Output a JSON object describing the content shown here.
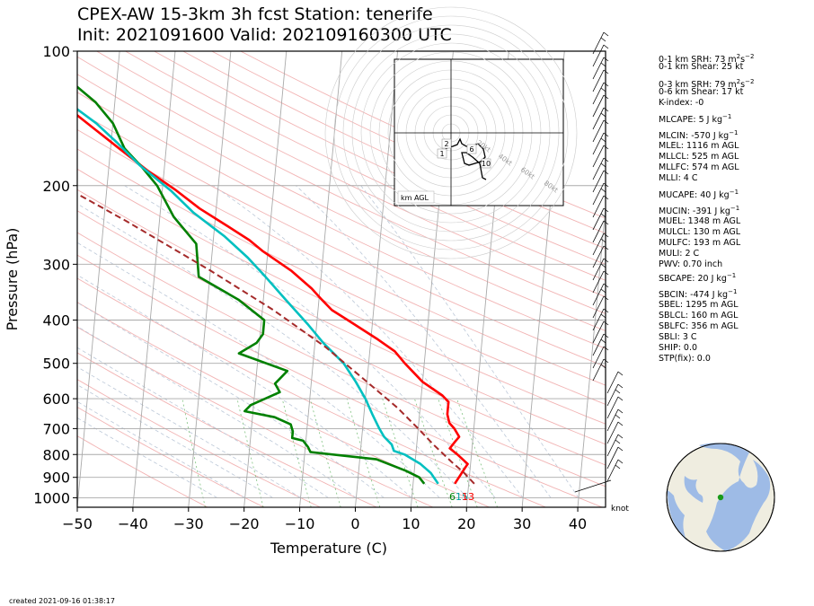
{
  "title": {
    "line1": "CPEX-AW 15-3km  3h fcst  Station: tenerife",
    "line2": "Init: 2021091600  Valid: 202109160300 UTC"
  },
  "chart_data": {
    "type": "line",
    "subtype": "skew-T log-p sounding",
    "xlabel": "Temperature (C)",
    "ylabel": "Pressure (hPa)",
    "x_ticks": [
      -50,
      -40,
      -30,
      -20,
      -10,
      0,
      10,
      20,
      30,
      40
    ],
    "x_tick_labels": [
      "−50",
      "−40",
      "−30",
      "−20",
      "−10",
      "0",
      "10",
      "20",
      "30",
      "40"
    ],
    "y_ticks": [
      100,
      200,
      300,
      400,
      500,
      600,
      700,
      800,
      900,
      1000
    ],
    "xlim": [
      -50,
      45
    ],
    "ylim": [
      1050,
      100
    ],
    "y_scale": "log",
    "wind_unit_label": "knot",
    "surface_labels": {
      "dewpoint": "6",
      "wetbulb": "15",
      "temperature": "13"
    },
    "series": [
      {
        "name": "temperature",
        "color": "#ff0000",
        "points": [
          [
            17.5,
            930
          ],
          [
            19.0,
            860
          ],
          [
            19.5,
            840
          ],
          [
            18.5,
            820
          ],
          [
            17.5,
            800
          ],
          [
            16.0,
            775
          ],
          [
            16.8,
            750
          ],
          [
            17.5,
            730
          ],
          [
            16.5,
            700
          ],
          [
            15.5,
            680
          ],
          [
            15.0,
            650
          ],
          [
            15.0,
            610
          ],
          [
            13.8,
            590
          ],
          [
            10.0,
            550
          ],
          [
            6.5,
            500
          ],
          [
            4.5,
            470
          ],
          [
            1.0,
            440
          ],
          [
            -4.5,
            400
          ],
          [
            -7.5,
            380
          ],
          [
            -9.5,
            360
          ],
          [
            -11.5,
            340
          ],
          [
            -15.5,
            310
          ],
          [
            -21.0,
            280
          ],
          [
            -23.5,
            265
          ],
          [
            -28.0,
            245
          ],
          [
            -33.0,
            225
          ],
          [
            -37.5,
            205
          ],
          [
            -43.0,
            185
          ],
          [
            -48.5,
            165
          ],
          [
            -53.0,
            150
          ],
          [
            -58.0,
            135
          ],
          [
            -61.5,
            122
          ],
          [
            -65.5,
            112
          ],
          [
            -70.0,
            100
          ]
        ]
      },
      {
        "name": "dewpoint",
        "color": "#008000",
        "points": [
          [
            12.0,
            930
          ],
          [
            11.0,
            900
          ],
          [
            8.5,
            870
          ],
          [
            3.0,
            820
          ],
          [
            -9.0,
            790
          ],
          [
            -9.5,
            770
          ],
          [
            -10.5,
            745
          ],
          [
            -12.5,
            735
          ],
          [
            -12.5,
            710
          ],
          [
            -13.0,
            685
          ],
          [
            -16.0,
            660
          ],
          [
            -21.5,
            640
          ],
          [
            -20.5,
            620
          ],
          [
            -15.5,
            580
          ],
          [
            -16.5,
            555
          ],
          [
            -14.5,
            520
          ],
          [
            -23.5,
            475
          ],
          [
            -20.5,
            450
          ],
          [
            -19.5,
            430
          ],
          [
            -19.5,
            400
          ],
          [
            -24.5,
            360
          ],
          [
            -32.0,
            320
          ],
          [
            -33.0,
            270
          ],
          [
            -37.5,
            235
          ],
          [
            -41.0,
            200
          ],
          [
            -44.0,
            182
          ],
          [
            -47.5,
            165
          ],
          [
            -50.0,
            145
          ],
          [
            -53.5,
            130
          ],
          [
            -59.0,
            115
          ],
          [
            -66.0,
            100
          ]
        ]
      },
      {
        "name": "wetbulb",
        "color": "#00c0c0",
        "points": [
          [
            14.5,
            930
          ],
          [
            13.0,
            880
          ],
          [
            11.0,
            840
          ],
          [
            8.0,
            800
          ],
          [
            6.0,
            785
          ],
          [
            5.5,
            760
          ],
          [
            4.0,
            730
          ],
          [
            3.0,
            700
          ],
          [
            1.5,
            650
          ],
          [
            0.0,
            600
          ],
          [
            -2.0,
            550
          ],
          [
            -4.5,
            500
          ],
          [
            -8.5,
            450
          ],
          [
            -11.5,
            410
          ],
          [
            -16.0,
            360
          ],
          [
            -20.0,
            320
          ],
          [
            -23.5,
            290
          ],
          [
            -28.0,
            260
          ],
          [
            -34.0,
            230
          ],
          [
            -38.5,
            205
          ],
          [
            -44.5,
            180
          ],
          [
            -49.0,
            160
          ],
          [
            -53.0,
            145
          ],
          [
            -58.5,
            130
          ],
          [
            -61.5,
            122
          ],
          [
            -65.5,
            112
          ],
          [
            -70.0,
            100
          ]
        ]
      },
      {
        "name": "parcel",
        "color": "#a52a2a",
        "points": [
          [
            21.0,
            930
          ],
          [
            19.0,
            880
          ],
          [
            16.5,
            830
          ],
          [
            13.0,
            760
          ],
          [
            10.0,
            700
          ],
          [
            6.0,
            630
          ],
          [
            0.0,
            550
          ],
          [
            -8.0,
            460
          ],
          [
            -18.0,
            380
          ],
          [
            -30.0,
            310
          ],
          [
            -46.0,
            240
          ],
          [
            -65.0,
            180
          ],
          [
            -88.0,
            130
          ],
          [
            -101.0,
            110
          ],
          [
            -106.0,
            103
          ]
        ]
      }
    ],
    "hodograph": {
      "height_labels": [
        "1",
        "2",
        "6",
        "10"
      ],
      "ring_labels": [
        "20kt",
        "40kt",
        "60kt",
        "80kt"
      ],
      "legend": "km AGL"
    }
  },
  "indices": [
    {
      "label": "0-1 km SRH: 73 m",
      "sup1": "2",
      "mid": "s",
      "sup2": "−2"
    },
    {
      "label": "0-1 km Shear: 25 kt"
    },
    {
      "label": "0-3 km SRH: 79 m",
      "sup1": "2",
      "mid": "s",
      "sup2": "−2"
    },
    {
      "label": "0-6 km Shear: 17 kt"
    },
    {
      "label": "K-index: -0"
    },
    {
      "label": "MLCAPE: 5 J kg",
      "sup1": "−1"
    },
    {
      "label": "MLCIN: -570 J kg",
      "sup1": "−1"
    },
    {
      "label": "MLEL: 1116 m AGL"
    },
    {
      "label": "MLLCL: 525 m AGL"
    },
    {
      "label": "MLLFC: 574 m AGL"
    },
    {
      "label": "MLLI: 4 C"
    },
    {
      "label": "MUCAPE: 40 J kg",
      "sup1": "−1"
    },
    {
      "label": "MUCIN: -391 J kg",
      "sup1": "−1"
    },
    {
      "label": "MUEL: 1348 m AGL"
    },
    {
      "label": "MULCL: 130 m AGL"
    },
    {
      "label": "MULFC: 193 m AGL"
    },
    {
      "label": "MULI: 2 C"
    },
    {
      "label": "PWV: 0.70 inch"
    },
    {
      "label": "SBCAPE: 20 J kg",
      "sup1": "−1"
    },
    {
      "label": "SBCIN: -474 J kg",
      "sup1": "−1"
    },
    {
      "label": "SBEL: 1295 m AGL"
    },
    {
      "label": "SBLCL: 160 m AGL"
    },
    {
      "label": "SBLFC: 356 m AGL"
    },
    {
      "label": "SBLI: 3 C"
    },
    {
      "label": "SHIP: 0.0"
    },
    {
      "label": "STP(fix): 0.0"
    }
  ],
  "footer": {
    "created": "created 2021-09-16 01:38:17"
  },
  "colors": {
    "ocean": "#9ebbe6",
    "land": "#efede0",
    "station": "#1a9a1a"
  }
}
